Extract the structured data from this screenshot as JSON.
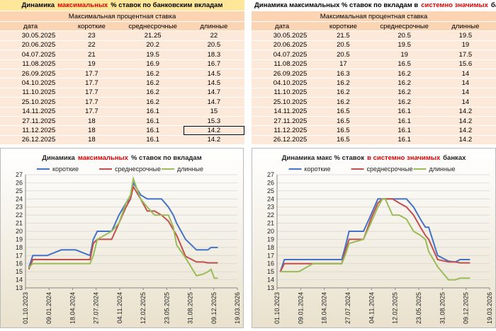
{
  "tables": [
    {
      "title": [
        "Динамика",
        "максимальных",
        "% ставок по банковским вкладам"
      ],
      "title_highlight": 1,
      "subheader": "Максимальная процентная ставка",
      "columns": [
        "дата",
        "короткие",
        "среднесрочные",
        "длинные"
      ],
      "rows": [
        [
          "30.05.2025",
          23,
          21.25,
          22
        ],
        [
          "20.06.2025",
          22,
          20.2,
          20.5
        ],
        [
          "04.07.2025",
          21,
          19.5,
          18.3
        ],
        [
          "11.08.2025",
          19,
          16.9,
          16.7
        ],
        [
          "26.09.2025",
          17.7,
          16.2,
          14.5
        ],
        [
          "04.10.2025",
          17.7,
          16.2,
          14.5
        ],
        [
          "11.10.2025",
          17.7,
          16.2,
          14.7
        ],
        [
          "25.10.2025",
          17.7,
          16.2,
          14.7
        ],
        [
          "14.11.2025",
          17.7,
          16.1,
          15
        ],
        [
          "27.11.2025",
          18,
          16.1,
          15.3
        ],
        [
          "11.12.2025",
          18,
          16.1,
          14.2
        ],
        [
          "26.12.2025",
          18,
          16.1,
          14.2
        ]
      ],
      "selected_cell": [
        10,
        3
      ]
    },
    {
      "title": [
        "Динамика максимальных % ставок по вкладам в",
        "системно значимых",
        "банках"
      ],
      "title_highlight": 1,
      "subheader": "Максимальная процентная ставка",
      "columns": [
        "дата",
        "короткие",
        "среднесрочные",
        "длинные"
      ],
      "rows": [
        [
          "30.05.2025",
          21.5,
          20.5,
          19.5
        ],
        [
          "20.06.2025",
          20.5,
          19.5,
          19
        ],
        [
          "04.07.2025",
          20.5,
          19,
          17.5
        ],
        [
          "11.08.2025",
          17,
          16.5,
          15.6
        ],
        [
          "26.09.2025",
          16.3,
          16.2,
          14
        ],
        [
          "04.10.2025",
          16.2,
          16.2,
          14
        ],
        [
          "11.10.2025",
          16.2,
          16.2,
          14
        ],
        [
          "25.10.2025",
          16.2,
          16.2,
          14
        ],
        [
          "14.11.2025",
          16.5,
          16.1,
          14.2
        ],
        [
          "27.11.2025",
          16.5,
          16.1,
          14.2
        ],
        [
          "11.12.2025",
          16.5,
          16.1,
          14.2
        ],
        [
          "26.12.2025",
          16.5,
          16.1,
          14.2
        ]
      ]
    }
  ],
  "chart_data": [
    {
      "type": "line",
      "title": [
        "Динамика",
        "максимальных",
        "% ставок по вкладам"
      ],
      "title_highlight": 1,
      "x": [
        "15.10.2023",
        "01.11.2023",
        "01.01.2024",
        "01.03.2024",
        "01.05.2024",
        "01.07.2024",
        "15.07.2024",
        "01.08.2024",
        "01.10.2024",
        "01.11.2024",
        "01.12.2024",
        "20.12.2024",
        "01.01.2025",
        "01.02.2025",
        "01.03.2025",
        "01.04.2025",
        "01.05.2025",
        "30.05.2025",
        "20.06.2025",
        "04.07.2025",
        "11.08.2025",
        "26.09.2025",
        "25.10.2025",
        "14.11.2025",
        "27.11.2025",
        "11.12.2025",
        "26.12.2025"
      ],
      "series": [
        {
          "name": "короткие",
          "color": "#4472c4",
          "values": [
            15.5,
            17,
            17,
            17.7,
            17.7,
            17,
            19,
            20,
            20,
            22,
            23.5,
            24,
            26,
            24.5,
            24,
            24,
            24,
            23,
            22,
            21,
            19,
            17.7,
            17.7,
            17.7,
            18,
            18,
            18
          ]
        },
        {
          "name": "среднесрочные",
          "color": "#c0504d",
          "values": [
            15.3,
            16.5,
            16.5,
            16.5,
            16.5,
            16.5,
            18.5,
            19,
            19,
            21,
            23,
            24,
            25.5,
            24,
            22.5,
            22.5,
            22,
            21.25,
            20.2,
            19.5,
            16.9,
            16.2,
            16.2,
            16.1,
            16.1,
            16.1,
            16.1
          ]
        },
        {
          "name": "длинные",
          "color": "#9bbb59",
          "values": [
            15.5,
            16,
            16,
            16,
            16,
            16,
            17,
            19,
            20,
            21,
            23.5,
            24.5,
            26.5,
            24,
            23,
            22,
            22,
            22,
            20.5,
            18.3,
            16.7,
            14.5,
            14.7,
            15,
            15.3,
            14.2,
            14.2
          ]
        }
      ],
      "xlim": [
        "01.10.2023",
        "19.03.2026"
      ],
      "xticks": [
        "01.10.2023",
        "09.01.2024",
        "18.04.2024",
        "27.07.2024",
        "04.11.2024",
        "12.02.2025",
        "23.05.2025",
        "31.08.2025",
        "09.12.2025",
        "19.03.2026"
      ],
      "ylim": [
        13,
        27
      ],
      "yticks": [
        13,
        14,
        15,
        16,
        17,
        18,
        19,
        20,
        21,
        22,
        23,
        24,
        25,
        26,
        27
      ],
      "grid": true
    },
    {
      "type": "line",
      "title": [
        "Динамика макс % ставок",
        "в системно значимых",
        "банках"
      ],
      "title_highlight": 1,
      "x": [
        "15.10.2023",
        "01.11.2023",
        "01.01.2024",
        "01.03.2024",
        "01.05.2024",
        "01.07.2024",
        "15.07.2024",
        "01.08.2024",
        "01.10.2024",
        "01.11.2024",
        "01.12.2024",
        "20.12.2024",
        "01.01.2025",
        "01.02.2025",
        "01.03.2025",
        "01.04.2025",
        "01.05.2025",
        "30.05.2025",
        "20.06.2025",
        "04.07.2025",
        "11.08.2025",
        "26.09.2025",
        "25.10.2025",
        "14.11.2025",
        "27.11.2025",
        "11.12.2025",
        "26.12.2025"
      ],
      "series": [
        {
          "name": "короткие",
          "color": "#4472c4",
          "values": [
            15,
            16.5,
            16.5,
            16.5,
            16.5,
            16.5,
            18,
            20,
            20,
            22,
            24,
            24,
            24,
            24,
            24,
            24,
            23,
            21.5,
            20.5,
            20.5,
            17,
            16.3,
            16.2,
            16.5,
            16.5,
            16.5,
            16.5
          ]
        },
        {
          "name": "среднесрочные",
          "color": "#c0504d",
          "values": [
            15,
            16,
            16,
            16,
            16,
            16,
            17.5,
            19,
            19,
            21.5,
            23.5,
            24,
            24,
            24,
            23.5,
            23,
            22,
            20.5,
            19.5,
            19,
            16.5,
            16.2,
            16.2,
            16.1,
            16.1,
            16.1,
            16.1
          ]
        },
        {
          "name": "длинные",
          "color": "#9bbb59",
          "values": [
            15,
            15,
            15,
            16,
            16,
            16,
            17,
            18.5,
            19,
            21,
            23,
            24,
            24,
            22,
            22,
            21.5,
            20,
            19.5,
            19,
            17.5,
            15.6,
            14,
            14,
            14.2,
            14.2,
            14.2,
            14.2
          ]
        }
      ],
      "xlim": [
        "01.10.2023",
        "19.03.2026"
      ],
      "xticks": [
        "01.10.2023",
        "09.01.2024",
        "18.04.2024",
        "27.07.2024",
        "04.11.2024",
        "12.02.2025",
        "23.05.2025",
        "31.08.2025",
        "09.12.2025",
        "19.03.2026"
      ],
      "ylim": [
        13,
        27
      ],
      "yticks": [
        13,
        14,
        15,
        16,
        17,
        18,
        19,
        20,
        21,
        22,
        23,
        24,
        25,
        26,
        27
      ],
      "grid": true
    }
  ]
}
